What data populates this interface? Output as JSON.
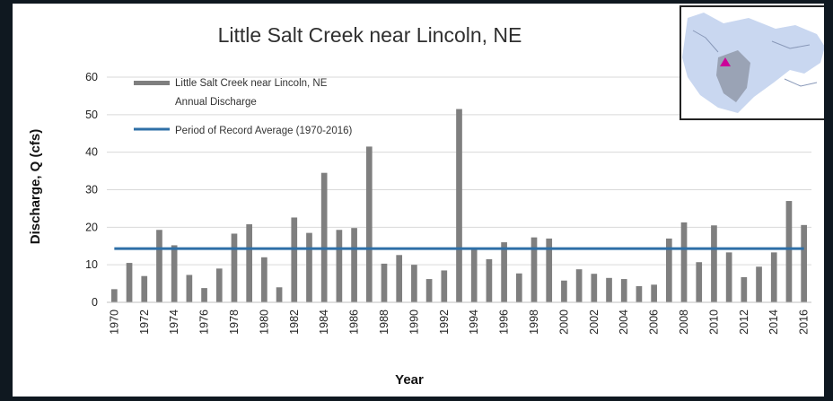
{
  "chart_data": {
    "type": "bar",
    "title": "Little Salt Creek near Lincoln, NE",
    "xlabel": "Year",
    "ylabel": "Discharge, Q (cfs)",
    "ylim": [
      0,
      60
    ],
    "yticks": [
      0,
      10,
      20,
      30,
      40,
      50,
      60
    ],
    "grid": true,
    "legend_position": "top-left",
    "colors": {
      "bars": "#7f7f7f",
      "average": "#2e6fa7"
    },
    "x": [
      1970,
      1971,
      1972,
      1973,
      1974,
      1975,
      1976,
      1977,
      1978,
      1979,
      1980,
      1981,
      1982,
      1983,
      1984,
      1985,
      1986,
      1987,
      1988,
      1989,
      1990,
      1991,
      1992,
      1993,
      1994,
      1995,
      1996,
      1997,
      1998,
      1999,
      2000,
      2001,
      2002,
      2003,
      2004,
      2005,
      2006,
      2007,
      2008,
      2009,
      2010,
      2011,
      2012,
      2013,
      2014,
      2015,
      2016
    ],
    "x_tick_labels": [
      "1970",
      "1972",
      "1974",
      "1976",
      "1978",
      "1980",
      "1982",
      "1984",
      "1986",
      "1988",
      "1990",
      "1992",
      "1994",
      "1996",
      "1998",
      "2000",
      "2002",
      "2004",
      "2006",
      "2008",
      "2010",
      "2012",
      "2014",
      "2016"
    ],
    "series": [
      {
        "name": "Little Salt Creek near Lincoln, NE Annual Discharge",
        "legend_lines": [
          "Little Salt Creek near Lincoln, NE",
          "Annual Discharge"
        ],
        "type": "bar",
        "values": [
          3.5,
          10.5,
          7,
          19.3,
          15.2,
          7.3,
          3.8,
          9,
          18.3,
          20.8,
          12,
          4,
          22.6,
          18.5,
          34.5,
          19.3,
          19.8,
          41.5,
          10.3,
          12.6,
          10,
          6.2,
          8.5,
          51.5,
          14,
          11.5,
          16,
          7.7,
          17.3,
          17,
          5.8,
          8.8,
          7.6,
          6.5,
          6.2,
          4.3,
          4.7,
          17,
          21.3,
          10.7,
          20.5,
          13.3,
          6.7,
          9.5,
          13.3,
          27,
          20.6
        ]
      },
      {
        "name": "Period of Record Average (1970-2016)",
        "type": "line",
        "value": 14.3
      }
    ]
  },
  "inset_map": {
    "marker_color": "#cc0099",
    "land_color": "#c9d7f0"
  }
}
